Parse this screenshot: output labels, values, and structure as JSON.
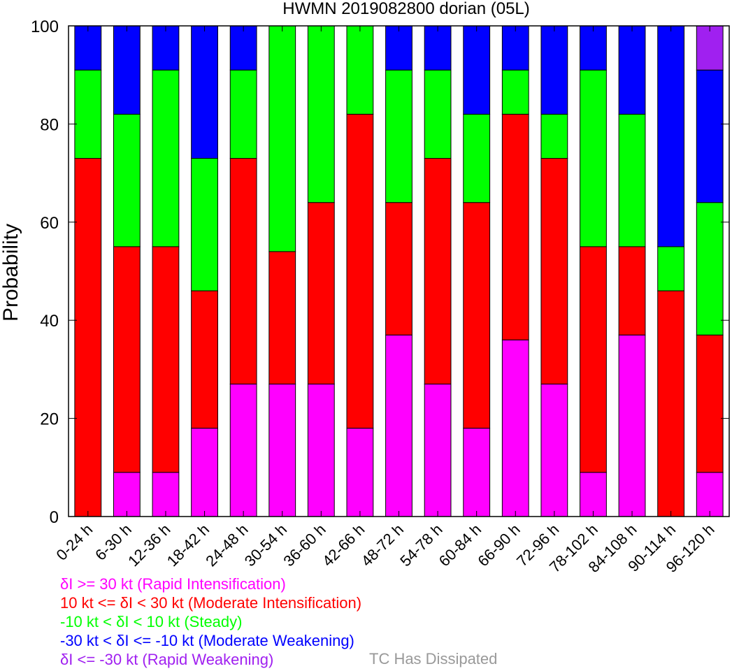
{
  "chart_data": {
    "type": "bar",
    "stacked": true,
    "title": "HWMN 2019082800 dorian (05L)",
    "ylabel": "Probability",
    "ylim": [
      0,
      100
    ],
    "yticks": [
      0,
      20,
      40,
      60,
      80,
      100
    ],
    "grid": false,
    "categories": [
      "0-24 h",
      "6-30 h",
      "12-36 h",
      "18-42 h",
      "24-48 h",
      "30-54 h",
      "36-60 h",
      "42-66 h",
      "48-72 h",
      "54-78 h",
      "60-84 h",
      "66-90 h",
      "72-96 h",
      "78-102 h",
      "84-108 h",
      "90-114 h",
      "96-120 h"
    ],
    "series": [
      {
        "name": "Rapid Intensification",
        "color": "#ff00ff",
        "values": [
          0,
          9,
          9,
          18,
          27,
          27,
          27,
          18,
          37,
          27,
          18,
          36,
          27,
          9,
          37,
          0,
          9
        ]
      },
      {
        "name": "Moderate Intensification",
        "color": "#ff0000",
        "values": [
          73,
          46,
          46,
          28,
          46,
          27,
          37,
          64,
          27,
          46,
          46,
          46,
          46,
          46,
          18,
          46,
          28
        ]
      },
      {
        "name": "Steady",
        "color": "#00ff00",
        "values": [
          18,
          27,
          36,
          27,
          18,
          46,
          36,
          18,
          27,
          18,
          18,
          9,
          9,
          36,
          27,
          9,
          27
        ]
      },
      {
        "name": "Moderate Weakening",
        "color": "#0000ff",
        "values": [
          9,
          18,
          9,
          27,
          9,
          0,
          0,
          0,
          9,
          9,
          18,
          9,
          18,
          9,
          18,
          45,
          27
        ]
      },
      {
        "name": "Rapid Weakening",
        "color": "#a020f0",
        "values": [
          0,
          0,
          0,
          0,
          0,
          0,
          0,
          0,
          0,
          0,
          0,
          0,
          0,
          0,
          0,
          0,
          9
        ]
      }
    ]
  },
  "legend": {
    "items": [
      {
        "text": "δI >= 30 kt (Rapid Intensification)",
        "color": "#ff00ff"
      },
      {
        "text": "10 kt <= δI < 30 kt (Moderate Intensification)",
        "color": "#ff0000"
      },
      {
        "text": "-10 kt < δI < 10 kt (Steady)",
        "color": "#00ff00"
      },
      {
        "text": "-30 kt < δI <= -10 kt (Moderate Weakening)",
        "color": "#0000ff"
      },
      {
        "text": "δI <= -30 kt (Rapid Weakening)",
        "color": "#a020f0"
      }
    ],
    "dissipated": {
      "text": "TC Has Dissipated",
      "color": "#999999"
    }
  }
}
